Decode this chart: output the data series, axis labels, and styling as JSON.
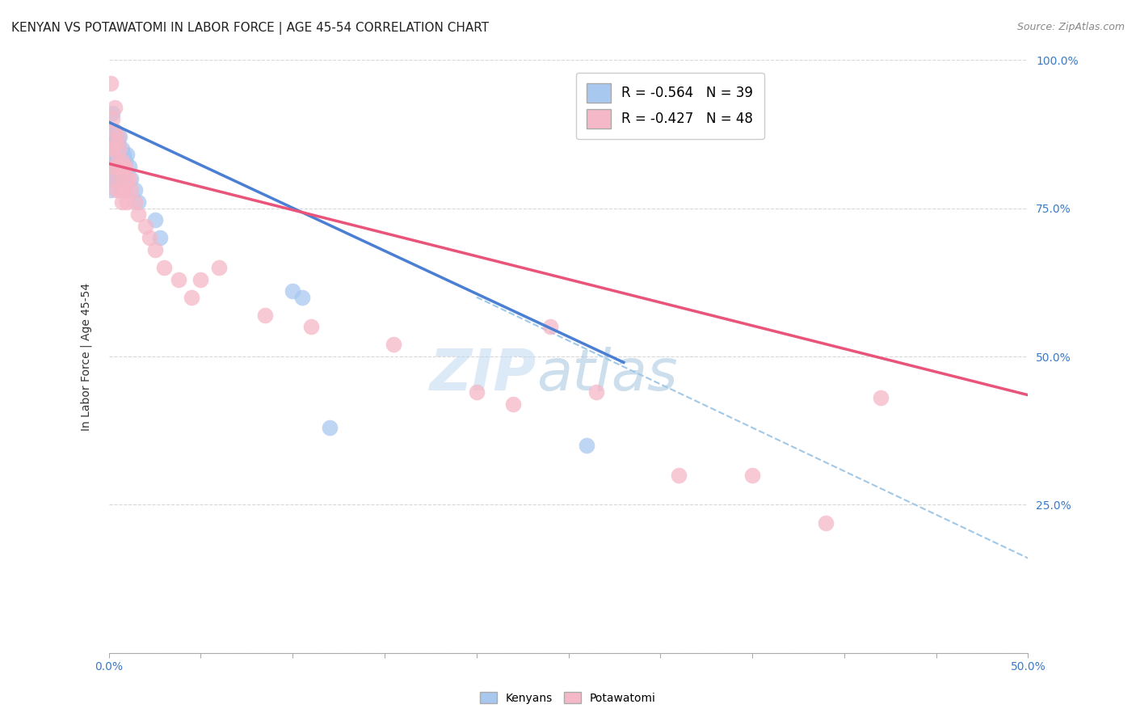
{
  "title": "KENYAN VS POTAWATOMI IN LABOR FORCE | AGE 45-54 CORRELATION CHART",
  "source": "Source: ZipAtlas.com",
  "ylabel": "In Labor Force | Age 45-54",
  "xlim": [
    0.0,
    0.5
  ],
  "ylim": [
    0.0,
    1.0
  ],
  "legend_r_blue": "-0.564",
  "legend_n_blue": "39",
  "legend_r_pink": "-0.427",
  "legend_n_pink": "48",
  "blue_color": "#a8c8f0",
  "pink_color": "#f5b8c8",
  "blue_line_color": "#4a7fd4",
  "pink_line_color": "#e8547a",
  "dashed_line_color": "#a0c8e8",
  "watermark_zip": "ZIP",
  "watermark_atlas": "atlas",
  "kenyan_scatter_x": [
    0.001,
    0.001,
    0.001,
    0.001,
    0.001,
    0.001,
    0.002,
    0.002,
    0.002,
    0.002,
    0.002,
    0.003,
    0.003,
    0.003,
    0.003,
    0.004,
    0.004,
    0.004,
    0.005,
    0.005,
    0.005,
    0.006,
    0.006,
    0.007,
    0.007,
    0.008,
    0.008,
    0.009,
    0.01,
    0.011,
    0.012,
    0.014,
    0.016,
    0.025,
    0.028,
    0.1,
    0.105,
    0.12,
    0.26
  ],
  "kenyan_scatter_y": [
    0.88,
    0.86,
    0.84,
    0.82,
    0.8,
    0.78,
    0.91,
    0.88,
    0.86,
    0.84,
    0.82,
    0.88,
    0.86,
    0.83,
    0.8,
    0.87,
    0.85,
    0.83,
    0.86,
    0.84,
    0.81,
    0.87,
    0.83,
    0.85,
    0.82,
    0.84,
    0.8,
    0.83,
    0.84,
    0.82,
    0.8,
    0.78,
    0.76,
    0.73,
    0.7,
    0.61,
    0.6,
    0.38,
    0.35
  ],
  "potawatomi_scatter_x": [
    0.001,
    0.001,
    0.002,
    0.002,
    0.002,
    0.003,
    0.003,
    0.003,
    0.004,
    0.004,
    0.004,
    0.005,
    0.005,
    0.006,
    0.006,
    0.006,
    0.007,
    0.007,
    0.007,
    0.008,
    0.008,
    0.009,
    0.009,
    0.01,
    0.01,
    0.011,
    0.012,
    0.014,
    0.016,
    0.02,
    0.022,
    0.025,
    0.03,
    0.038,
    0.045,
    0.05,
    0.06,
    0.085,
    0.11,
    0.155,
    0.2,
    0.22,
    0.24,
    0.265,
    0.31,
    0.35,
    0.39,
    0.42
  ],
  "potawatomi_scatter_y": [
    0.96,
    0.85,
    0.9,
    0.85,
    0.8,
    0.92,
    0.88,
    0.82,
    0.86,
    0.82,
    0.78,
    0.87,
    0.83,
    0.85,
    0.82,
    0.78,
    0.83,
    0.8,
    0.76,
    0.82,
    0.78,
    0.82,
    0.78,
    0.8,
    0.76,
    0.8,
    0.78,
    0.76,
    0.74,
    0.72,
    0.7,
    0.68,
    0.65,
    0.63,
    0.6,
    0.63,
    0.65,
    0.57,
    0.55,
    0.52,
    0.44,
    0.42,
    0.55,
    0.44,
    0.3,
    0.3,
    0.22,
    0.43
  ],
  "blue_line_x": [
    0.0,
    0.28
  ],
  "blue_line_y": [
    0.895,
    0.49
  ],
  "pink_line_x": [
    0.0,
    0.5
  ],
  "pink_line_y": [
    0.825,
    0.435
  ],
  "dashed_line_x": [
    0.2,
    0.5
  ],
  "dashed_line_y": [
    0.6,
    0.16
  ],
  "background_color": "#ffffff",
  "grid_color": "#d8d8d8",
  "title_fontsize": 11,
  "axis_label_fontsize": 10,
  "tick_fontsize": 10,
  "legend_fontsize": 12
}
